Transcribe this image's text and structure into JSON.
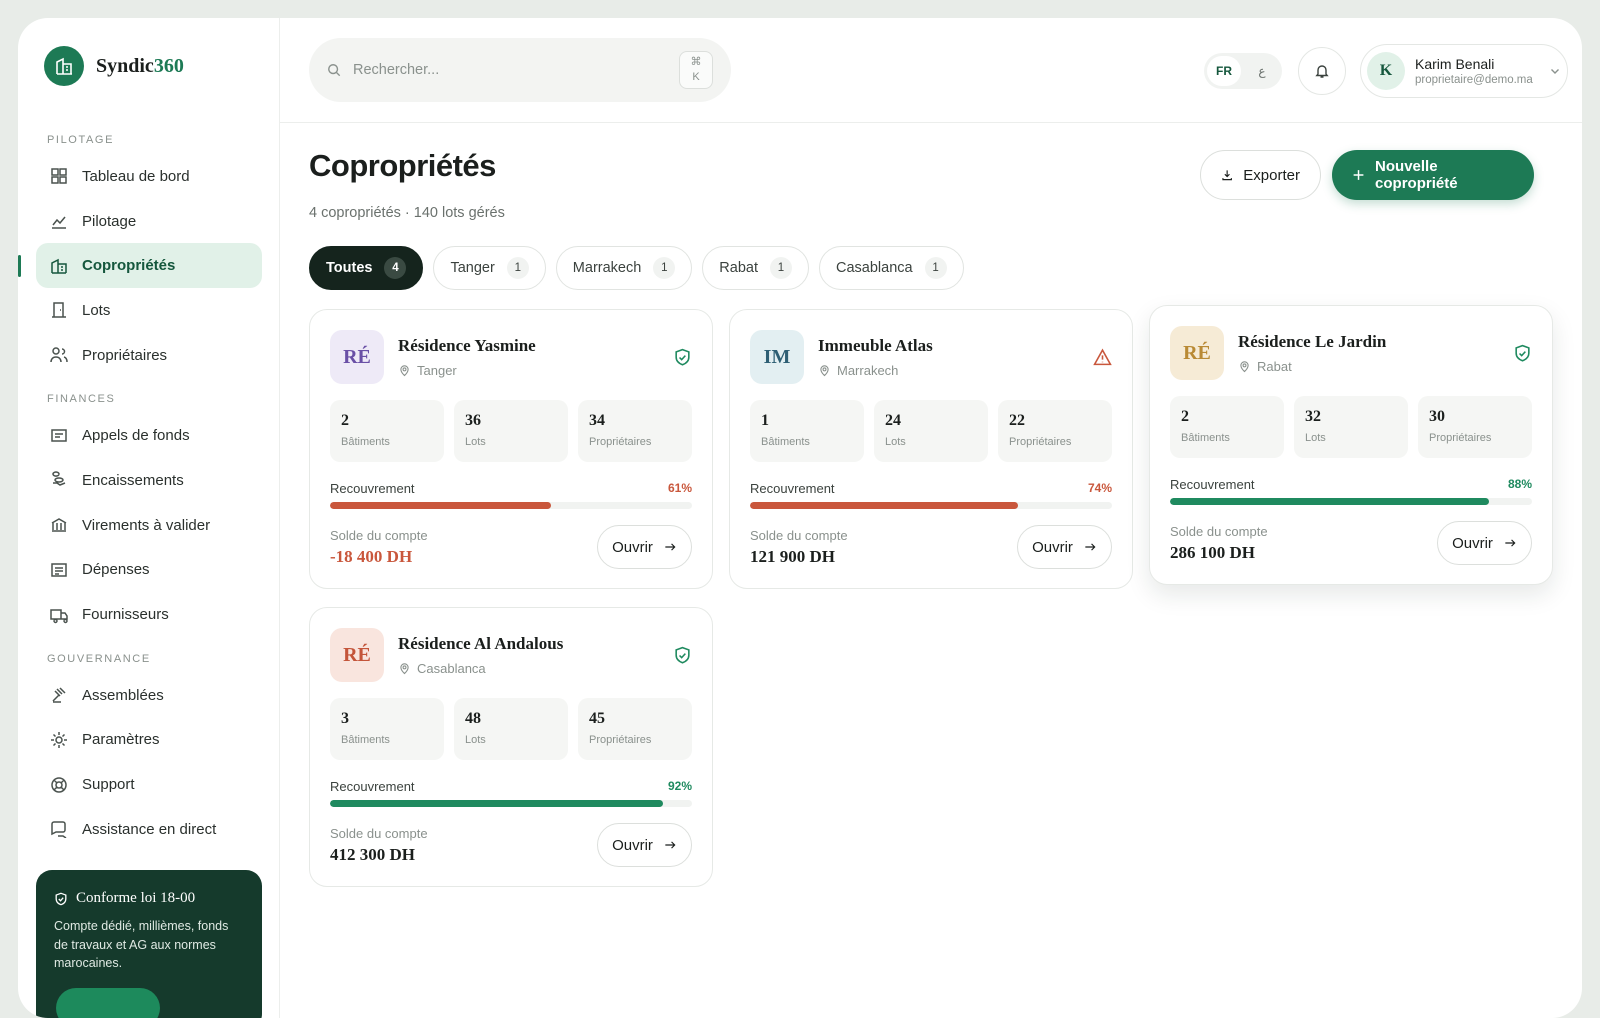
{
  "brand": {
    "name_a": "Syndic",
    "name_b": "360"
  },
  "sidebar": {
    "sections": [
      {
        "title": "PILOTAGE",
        "items": [
          {
            "label": "Tableau de bord"
          },
          {
            "label": "Pilotage"
          },
          {
            "label": "Copropriétés",
            "active": true
          },
          {
            "label": "Lots"
          },
          {
            "label": "Propriétaires"
          }
        ]
      },
      {
        "title": "FINANCES",
        "items": [
          {
            "label": "Appels de fonds"
          },
          {
            "label": "Encaissements"
          },
          {
            "label": "Virements à valider"
          },
          {
            "label": "Dépenses"
          },
          {
            "label": "Fournisseurs"
          }
        ]
      },
      {
        "title": "GOUVERNANCE",
        "items": [
          {
            "label": "Assemblées"
          },
          {
            "label": "Paramètres"
          },
          {
            "label": "Support"
          },
          {
            "label": "Assistance en direct"
          }
        ]
      }
    ],
    "promo": {
      "title": "Conforme loi 18-00",
      "text": "Compte dédié, millièmes, fonds de travaux et AG aux normes marocaines."
    }
  },
  "header": {
    "search_placeholder": "Rechercher...",
    "shortcut": [
      "⌘",
      "K"
    ],
    "languages": [
      "FR",
      "ع"
    ],
    "user": {
      "initial": "K",
      "name": "Karim Benali",
      "email": "proprietaire@demo.ma"
    }
  },
  "page": {
    "title": "Copropriétés",
    "subtitle": "4 copropriétés · 140 lots gérés",
    "actions": [
      "Exporter",
      "Nouvelle copropriété"
    ],
    "filters": [
      {
        "label": "Toutes",
        "count": 4,
        "active": true
      },
      {
        "label": "Tanger",
        "count": 1
      },
      {
        "label": "Marrakech",
        "count": 1
      },
      {
        "label": "Rabat",
        "count": 1
      },
      {
        "label": "Casablanca",
        "count": 1
      }
    ]
  },
  "cards": [
    {
      "initials": "RÉ",
      "tone": "#6a50a6",
      "tone_bg": "#eeeaf7",
      "name": "Résidence Yasmine",
      "city": "Tanger",
      "status": "ok",
      "stats": [
        {
          "value": 2,
          "label": "Bâtiments"
        },
        {
          "value": 36,
          "label": "Lots"
        },
        {
          "value": 34,
          "label": "Propriétaires"
        }
      ],
      "recovery_label": "Recouvrement",
      "recovery": {
        "value": 61,
        "label": "61%"
      },
      "bar_color": "#c9573c",
      "balance_label": "Solde du compte",
      "balance": "-18 400 DH",
      "balance_color": "#c9573c",
      "open": "Ouvrir"
    },
    {
      "initials": "IM",
      "tone": "#2e5f74",
      "tone_bg": "#e3eff2",
      "name": "Immeuble Atlas",
      "city": "Marrakech",
      "status": "warning",
      "stats": [
        {
          "value": 1,
          "label": "Bâtiments"
        },
        {
          "value": 24,
          "label": "Lots"
        },
        {
          "value": 22,
          "label": "Propriétaires"
        }
      ],
      "recovery_label": "Recouvrement",
      "recovery": {
        "value": 74,
        "label": "74%"
      },
      "bar_color": "#c9573c",
      "balance_label": "Solde du compte",
      "balance": "121 900 DH",
      "balance_color": "#1b1f1d",
      "open": "Ouvrir"
    },
    {
      "initials": "RÉ",
      "tone": "#b98a35",
      "tone_bg": "#f6ebd6",
      "name": "Résidence Le Jardin",
      "city": "Rabat",
      "status": "ok",
      "raised": true,
      "stats": [
        {
          "value": 2,
          "label": "Bâtiments"
        },
        {
          "value": 32,
          "label": "Lots"
        },
        {
          "value": 30,
          "label": "Propriétaires"
        }
      ],
      "recovery_label": "Recouvrement",
      "recovery": {
        "value": 88,
        "label": "88%"
      },
      "bar_color": "#1f8a5f",
      "balance_label": "Solde du compte",
      "balance": "286 100 DH",
      "balance_color": "#1b1f1d",
      "open": "Ouvrir"
    },
    {
      "initials": "RÉ",
      "tone": "#c4553a",
      "tone_bg": "#f9e5de",
      "name": "Résidence Al Andalous",
      "city": "Casablanca",
      "status": "ok",
      "stats": [
        {
          "value": 3,
          "label": "Bâtiments"
        },
        {
          "value": 48,
          "label": "Lots"
        },
        {
          "value": 45,
          "label": "Propriétaires"
        }
      ],
      "recovery_label": "Recouvrement",
      "recovery": {
        "value": 92,
        "label": "92%"
      },
      "bar_color": "#1f8a5f",
      "balance_label": "Solde du compte",
      "balance": "412 300 DH",
      "balance_color": "#1b1f1d",
      "open": "Ouvrir"
    }
  ]
}
